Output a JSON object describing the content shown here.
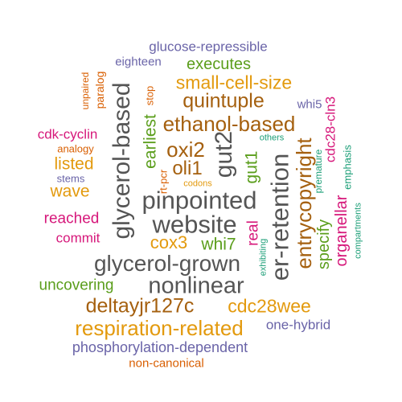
{
  "colors": {
    "grey": "#555555",
    "gold": "#E39A0E",
    "brown": "#A5600F",
    "green": "#5B9E1C",
    "purple": "#6A64A8",
    "magenta": "#D6177A",
    "teal": "#1B9E77",
    "orange": "#D95F02"
  },
  "words": [
    {
      "text": "glucose-repressible",
      "color": "purple"
    },
    {
      "text": "eighteen",
      "color": "purple"
    },
    {
      "text": "executes",
      "color": "green"
    },
    {
      "text": "small-cell-size",
      "color": "gold"
    },
    {
      "text": "quintuple",
      "color": "brown"
    },
    {
      "text": "whi5",
      "color": "purple"
    },
    {
      "text": "ethanol-based",
      "color": "brown"
    },
    {
      "text": "cdk-cyclin",
      "color": "magenta"
    },
    {
      "text": "analogy",
      "color": "orange"
    },
    {
      "text": "listed",
      "color": "gold"
    },
    {
      "text": "stems",
      "color": "purple"
    },
    {
      "text": "wave",
      "color": "gold"
    },
    {
      "text": "oxi2",
      "color": "brown"
    },
    {
      "text": "oli1",
      "color": "brown"
    },
    {
      "text": "others",
      "color": "teal"
    },
    {
      "text": "codons",
      "color": "gold"
    },
    {
      "text": "pinpointed",
      "color": "grey"
    },
    {
      "text": "reached",
      "color": "magenta"
    },
    {
      "text": "website",
      "color": "grey"
    },
    {
      "text": "commit",
      "color": "magenta"
    },
    {
      "text": "cox3",
      "color": "gold"
    },
    {
      "text": "whi7",
      "color": "green"
    },
    {
      "text": "glycerol-grown",
      "color": "grey"
    },
    {
      "text": "uncovering",
      "color": "green"
    },
    {
      "text": "nonlinear",
      "color": "grey"
    },
    {
      "text": "deltayjr127c",
      "color": "brown"
    },
    {
      "text": "cdc28wee",
      "color": "gold"
    },
    {
      "text": "respiration-related",
      "color": "gold"
    },
    {
      "text": "one-hybrid",
      "color": "purple"
    },
    {
      "text": "phosphorylation-dependent",
      "color": "purple"
    },
    {
      "text": "non-canonical",
      "color": "orange"
    },
    {
      "text": "unpaired",
      "color": "orange"
    },
    {
      "text": "paralog",
      "color": "orange"
    },
    {
      "text": "glycerol-based",
      "color": "grey"
    },
    {
      "text": "stop",
      "color": "orange"
    },
    {
      "text": "earliest",
      "color": "green"
    },
    {
      "text": "rt-pcr",
      "color": "orange"
    },
    {
      "text": "gut2",
      "color": "grey"
    },
    {
      "text": "gut1",
      "color": "green"
    },
    {
      "text": "real",
      "color": "magenta"
    },
    {
      "text": "exhibiting",
      "color": "teal"
    },
    {
      "text": "er-retention",
      "color": "grey"
    },
    {
      "text": "entrycopyright",
      "color": "brown"
    },
    {
      "text": "premature",
      "color": "teal"
    },
    {
      "text": "specify",
      "color": "green"
    },
    {
      "text": "cdc28-cln3",
      "color": "magenta"
    },
    {
      "text": "emphasis",
      "color": "teal"
    },
    {
      "text": "organellar",
      "color": "magenta"
    },
    {
      "text": "compartments",
      "color": "teal"
    }
  ]
}
